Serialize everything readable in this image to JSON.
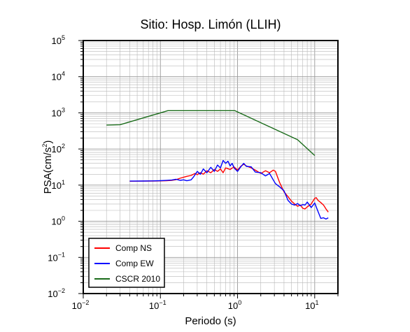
{
  "chart_data": {
    "type": "line",
    "title": "Sitio: Hosp. Limón (LLIH)",
    "xlabel": "Periodo (s)",
    "ylabel": {
      "base": "PSA(cm/s",
      "sup": "2",
      "end": ")"
    },
    "x_scale": "log",
    "y_scale": "log",
    "xlim": [
      0.01,
      20
    ],
    "ylim": [
      0.01,
      100000
    ],
    "grid": true,
    "legend_position": "bottom-left",
    "x_ticks": [
      {
        "base": "10",
        "exp": "−2",
        "value": 0.01
      },
      {
        "base": "10",
        "exp": "−1",
        "value": 0.1
      },
      {
        "base": "10",
        "exp": "0",
        "value": 1
      },
      {
        "base": "10",
        "exp": "1",
        "value": 10
      }
    ],
    "y_ticks": [
      {
        "base": "10",
        "exp": "−2",
        "value": 0.01
      },
      {
        "base": "10",
        "exp": "−1",
        "value": 0.1
      },
      {
        "base": "10",
        "exp": "0",
        "value": 1
      },
      {
        "base": "10",
        "exp": "1",
        "value": 10
      },
      {
        "base": "10",
        "exp": "2",
        "value": 100
      },
      {
        "base": "10",
        "exp": "3",
        "value": 1000
      },
      {
        "base": "10",
        "exp": "4",
        "value": 10000
      },
      {
        "base": "10",
        "exp": "5",
        "value": 100000
      }
    ],
    "series": [
      {
        "name": "Comp NS",
        "color": "#ff0000",
        "points": [
          [
            0.04,
            12.8
          ],
          [
            0.06,
            12.9
          ],
          [
            0.08,
            13
          ],
          [
            0.1,
            13.1
          ],
          [
            0.12,
            13.2
          ],
          [
            0.14,
            13.6
          ],
          [
            0.16,
            14.2
          ],
          [
            0.18,
            15.5
          ],
          [
            0.2,
            16.5
          ],
          [
            0.22,
            17.5
          ],
          [
            0.25,
            18.5
          ],
          [
            0.28,
            21
          ],
          [
            0.3,
            19.5
          ],
          [
            0.33,
            22
          ],
          [
            0.36,
            20
          ],
          [
            0.4,
            25
          ],
          [
            0.45,
            22
          ],
          [
            0.5,
            27
          ],
          [
            0.55,
            24
          ],
          [
            0.6,
            28
          ],
          [
            0.65,
            22
          ],
          [
            0.7,
            30
          ],
          [
            0.8,
            27
          ],
          [
            0.9,
            32
          ],
          [
            1.0,
            26
          ],
          [
            1.1,
            33
          ],
          [
            1.2,
            38
          ],
          [
            1.3,
            34
          ],
          [
            1.5,
            30
          ],
          [
            1.7,
            26
          ],
          [
            2.0,
            21
          ],
          [
            2.3,
            25
          ],
          [
            2.6,
            22
          ],
          [
            2.9,
            26
          ],
          [
            3.1,
            24
          ],
          [
            3.5,
            12
          ],
          [
            4.0,
            6.5
          ],
          [
            4.5,
            4.8
          ],
          [
            5.0,
            3.6
          ],
          [
            5.5,
            3.0
          ],
          [
            6.0,
            2.6
          ],
          [
            6.5,
            2.8
          ],
          [
            7.0,
            2.3
          ],
          [
            7.5,
            2.2
          ],
          [
            8.0,
            2.5
          ],
          [
            9.0,
            3.0
          ],
          [
            10.0,
            4.3
          ],
          [
            10.5,
            4.5
          ],
          [
            11.0,
            3.8
          ],
          [
            12.0,
            3.3
          ],
          [
            13.0,
            2.8
          ],
          [
            14.0,
            2.2
          ],
          [
            15.0,
            1.8
          ]
        ]
      },
      {
        "name": "Comp EW",
        "color": "#0000ff",
        "points": [
          [
            0.04,
            12.9
          ],
          [
            0.06,
            13
          ],
          [
            0.08,
            13.1
          ],
          [
            0.1,
            13.3
          ],
          [
            0.12,
            13.5
          ],
          [
            0.14,
            13.8
          ],
          [
            0.16,
            14.5
          ],
          [
            0.18,
            13.6
          ],
          [
            0.2,
            14.0
          ],
          [
            0.22,
            13.2
          ],
          [
            0.25,
            14.0
          ],
          [
            0.27,
            17
          ],
          [
            0.3,
            24
          ],
          [
            0.33,
            20
          ],
          [
            0.36,
            28
          ],
          [
            0.4,
            22
          ],
          [
            0.45,
            31
          ],
          [
            0.5,
            24
          ],
          [
            0.55,
            36
          ],
          [
            0.6,
            30
          ],
          [
            0.65,
            48
          ],
          [
            0.7,
            40
          ],
          [
            0.75,
            46
          ],
          [
            0.8,
            34
          ],
          [
            0.85,
            40
          ],
          [
            0.9,
            30
          ],
          [
            1.0,
            24
          ],
          [
            1.1,
            32
          ],
          [
            1.2,
            40
          ],
          [
            1.3,
            33
          ],
          [
            1.5,
            32
          ],
          [
            1.7,
            23
          ],
          [
            2.0,
            22
          ],
          [
            2.3,
            18
          ],
          [
            2.6,
            21
          ],
          [
            2.9,
            14
          ],
          [
            3.1,
            11
          ],
          [
            3.5,
            9
          ],
          [
            4.0,
            7.0
          ],
          [
            4.5,
            3.8
          ],
          [
            5.0,
            3.0
          ],
          [
            5.5,
            2.8
          ],
          [
            6.0,
            3.1
          ],
          [
            6.5,
            2.7
          ],
          [
            7.0,
            2.9
          ],
          [
            7.5,
            2.8
          ],
          [
            8.0,
            3.4
          ],
          [
            9.0,
            2.4
          ],
          [
            10.0,
            3.2
          ],
          [
            11.0,
            1.9
          ],
          [
            12.0,
            1.2
          ],
          [
            13.0,
            1.25
          ],
          [
            14.0,
            1.15
          ],
          [
            15.0,
            1.25
          ]
        ]
      },
      {
        "name": "CSCR 2010",
        "color": "#1a6b1a",
        "points": [
          [
            0.02,
            460
          ],
          [
            0.03,
            470
          ],
          [
            0.125,
            1150
          ],
          [
            0.92,
            1150
          ],
          [
            6.0,
            180
          ],
          [
            10.0,
            66
          ]
        ]
      }
    ]
  }
}
